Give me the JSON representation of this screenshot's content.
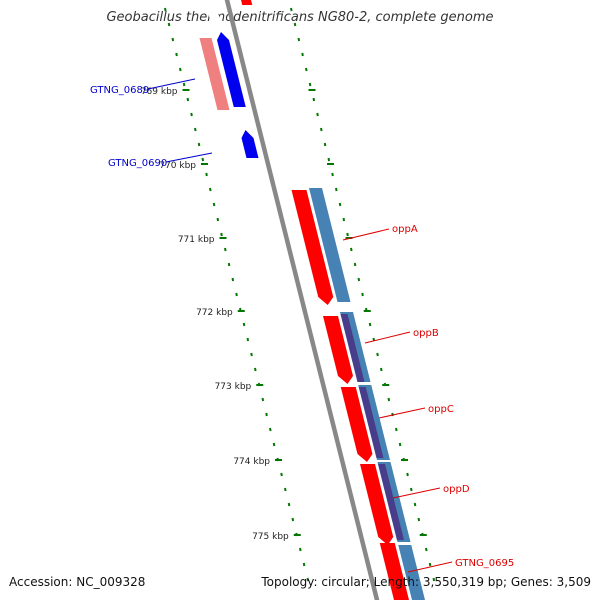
{
  "header": {
    "title": "Geobacillus thermodenitrificans NG80-2, complete genome"
  },
  "footer": {
    "accession": "Accession: NC_009328",
    "summary": "Topology: circular; Length: 3,550,319 bp; Genes: 3,509"
  },
  "ticks": [
    {
      "label": "769 kbp"
    },
    {
      "label": "770 kbp"
    },
    {
      "label": "771 kbp"
    },
    {
      "label": "772 kbp"
    },
    {
      "label": "773 kbp"
    },
    {
      "label": "774 kbp"
    },
    {
      "label": "775 kbp"
    }
  ],
  "genes": [
    {
      "name": "GTNG_0689",
      "color": "#0000cc"
    },
    {
      "name": "GTNG_0690",
      "color": "#0000cc"
    },
    {
      "name": "oppA",
      "color": "#dd0000"
    },
    {
      "name": "oppB",
      "color": "#dd0000"
    },
    {
      "name": "oppC",
      "color": "#dd0000"
    },
    {
      "name": "oppD",
      "color": "#dd0000"
    },
    {
      "name": "GTNG_0695",
      "color": "#dd0000"
    }
  ],
  "colors": {
    "backbone": "#888888",
    "tick": "#007700",
    "forward_cds": "#ff0000",
    "reverse_cds": "#0000ee",
    "forward_feature": "#4682b4",
    "reverse_feature": "#f08080",
    "domain": "#483d8b"
  }
}
